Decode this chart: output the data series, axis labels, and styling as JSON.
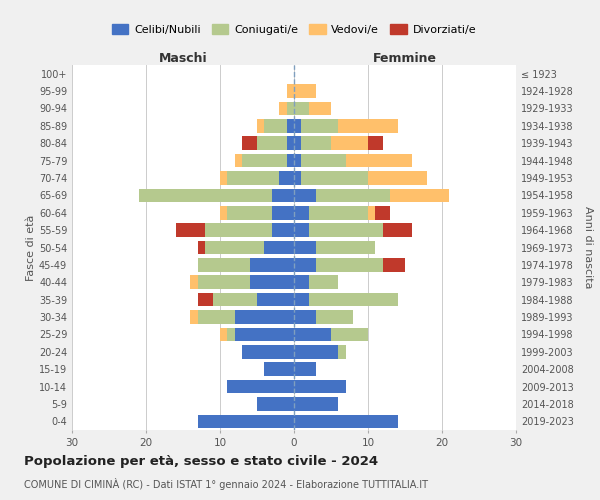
{
  "age_groups": [
    "0-4",
    "5-9",
    "10-14",
    "15-19",
    "20-24",
    "25-29",
    "30-34",
    "35-39",
    "40-44",
    "45-49",
    "50-54",
    "55-59",
    "60-64",
    "65-69",
    "70-74",
    "75-79",
    "80-84",
    "85-89",
    "90-94",
    "95-99",
    "100+"
  ],
  "birth_years": [
    "2019-2023",
    "2014-2018",
    "2009-2013",
    "2004-2008",
    "1999-2003",
    "1994-1998",
    "1989-1993",
    "1984-1988",
    "1979-1983",
    "1974-1978",
    "1969-1973",
    "1964-1968",
    "1959-1963",
    "1954-1958",
    "1949-1953",
    "1944-1948",
    "1939-1943",
    "1934-1938",
    "1929-1933",
    "1924-1928",
    "≤ 1923"
  ],
  "colors": {
    "celibi": "#4472c4",
    "coniugati": "#b5c98e",
    "vedovi": "#ffc06b",
    "divorziati": "#c0392b"
  },
  "maschi": {
    "celibi": [
      13,
      5,
      9,
      4,
      7,
      8,
      8,
      5,
      6,
      6,
      4,
      3,
      3,
      3,
      2,
      1,
      1,
      1,
      0,
      0,
      0
    ],
    "coniugati": [
      0,
      0,
      0,
      0,
      0,
      1,
      5,
      6,
      7,
      7,
      8,
      9,
      6,
      18,
      7,
      6,
      4,
      3,
      1,
      0,
      0
    ],
    "vedovi": [
      0,
      0,
      0,
      0,
      0,
      1,
      1,
      0,
      1,
      0,
      0,
      0,
      1,
      0,
      1,
      1,
      0,
      1,
      1,
      1,
      0
    ],
    "divorziati": [
      0,
      0,
      0,
      0,
      0,
      0,
      0,
      2,
      0,
      0,
      1,
      4,
      0,
      0,
      0,
      0,
      2,
      0,
      0,
      0,
      0
    ]
  },
  "femmine": {
    "celibi": [
      14,
      6,
      7,
      3,
      6,
      5,
      3,
      2,
      2,
      3,
      3,
      2,
      2,
      3,
      1,
      1,
      1,
      1,
      0,
      0,
      0
    ],
    "coniugati": [
      0,
      0,
      0,
      0,
      1,
      5,
      5,
      12,
      4,
      9,
      8,
      10,
      8,
      10,
      9,
      6,
      4,
      5,
      2,
      0,
      0
    ],
    "vedovi": [
      0,
      0,
      0,
      0,
      0,
      0,
      0,
      0,
      0,
      0,
      0,
      0,
      1,
      8,
      8,
      9,
      5,
      8,
      3,
      3,
      0
    ],
    "divorziati": [
      0,
      0,
      0,
      0,
      0,
      0,
      0,
      0,
      0,
      3,
      0,
      4,
      2,
      0,
      0,
      0,
      2,
      0,
      0,
      0,
      0
    ]
  },
  "title": "Popolazione per età, sesso e stato civile - 2024",
  "subtitle": "COMUNE DI CIMINÀ (RC) - Dati ISTAT 1° gennaio 2024 - Elaborazione TUTTITALIA.IT",
  "xlabel_left": "Maschi",
  "xlabel_right": "Femmine",
  "ylabel_left": "Fasce di età",
  "ylabel_right": "Anni di nascita",
  "xlim": 30,
  "legend_labels": [
    "Celibi/Nubili",
    "Coniugati/e",
    "Vedovi/e",
    "Divorziati/e"
  ],
  "bg_color": "#f0f0f0",
  "plot_bg_color": "#ffffff"
}
